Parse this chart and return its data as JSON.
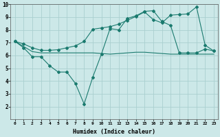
{
  "xlabel": "Humidex (Indice chaleur)",
  "ylabel": "",
  "xlim": [
    -0.5,
    23.5
  ],
  "ylim": [
    1,
    10
  ],
  "yticks": [
    2,
    3,
    4,
    5,
    6,
    7,
    8,
    9,
    10
  ],
  "xticks": [
    0,
    1,
    2,
    3,
    4,
    5,
    6,
    7,
    8,
    9,
    10,
    11,
    12,
    13,
    14,
    15,
    16,
    17,
    18,
    19,
    20,
    21,
    22,
    23
  ],
  "bg_color": "#cce8e8",
  "grid_color": "#aacfcf",
  "line_color": "#1a7a6e",
  "line1_x": [
    0,
    1,
    2,
    3,
    4,
    5,
    6,
    7,
    8,
    9,
    10,
    11,
    12,
    13,
    14,
    15,
    16,
    17,
    18,
    19,
    20,
    21,
    22,
    23
  ],
  "line1_y": [
    7.1,
    6.6,
    5.9,
    5.9,
    5.2,
    4.7,
    4.7,
    3.8,
    2.2,
    4.3,
    6.1,
    8.1,
    8.0,
    8.9,
    9.1,
    9.45,
    9.5,
    8.65,
    8.35,
    6.2,
    6.2,
    6.2,
    6.5,
    6.35
  ],
  "line2_x": [
    0,
    1,
    2,
    3,
    9,
    10,
    11,
    12,
    13,
    14,
    15,
    16,
    17,
    18,
    19,
    20,
    21,
    22,
    23
  ],
  "line2_y": [
    7.1,
    6.7,
    6.3,
    6.2,
    6.2,
    6.15,
    6.1,
    6.15,
    6.2,
    6.25,
    6.25,
    6.2,
    6.15,
    6.1,
    6.1,
    6.1,
    6.1,
    6.1,
    6.1
  ],
  "line3_x": [
    0,
    1,
    2,
    3,
    4,
    5,
    6,
    7,
    8,
    9,
    10,
    11,
    12,
    13,
    14,
    15,
    16,
    17,
    18,
    19,
    20,
    21,
    22,
    23
  ],
  "line3_y": [
    7.1,
    6.9,
    6.6,
    6.4,
    6.4,
    6.45,
    6.6,
    6.75,
    7.1,
    8.05,
    8.15,
    8.25,
    8.45,
    8.75,
    9.05,
    9.4,
    8.8,
    8.55,
    9.15,
    9.2,
    9.25,
    9.8,
    6.8,
    6.35
  ]
}
